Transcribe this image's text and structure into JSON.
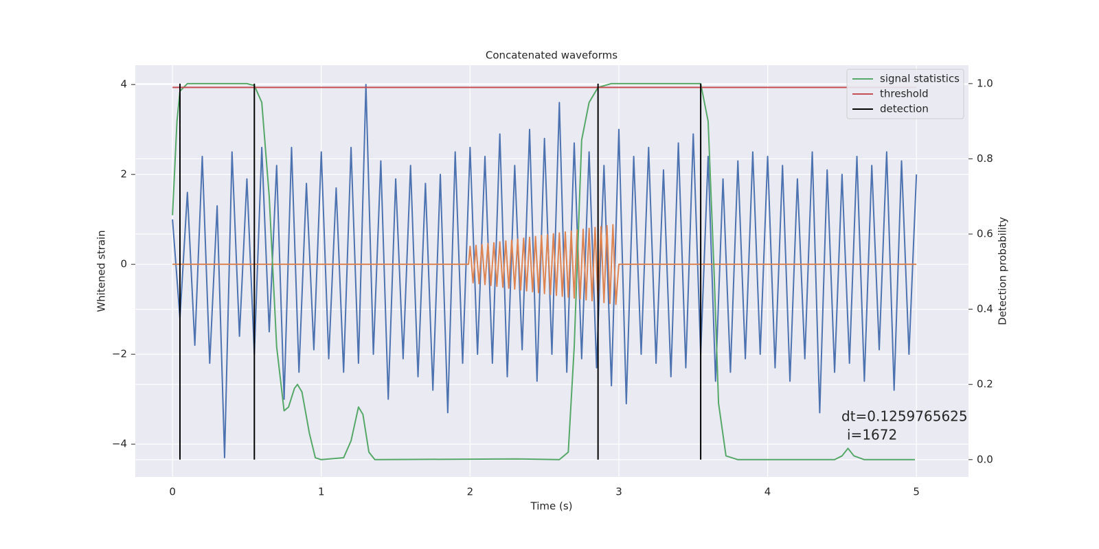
{
  "chart_data": {
    "type": "line",
    "title": "Concatenated waveforms",
    "xlabel": "Time (s)",
    "ylabel": "Whitened strain",
    "y2label": "Detection probability",
    "xlim": [
      -0.25,
      5.35
    ],
    "ylim": [
      -4.73,
      4.43
    ],
    "y2lim": [
      -0.046,
      1.049
    ],
    "xticks": [
      0,
      1,
      2,
      3,
      4,
      5
    ],
    "yticks": [
      {
        "value": -4,
        "label": "−4"
      },
      {
        "value": -2,
        "label": "−2"
      },
      0,
      2,
      4
    ],
    "y2ticks": [
      {
        "value": 0,
        "label": "0.0"
      },
      0.2,
      0.4,
      0.6,
      0.8,
      {
        "value": 1,
        "label": "1.0"
      }
    ],
    "grid": true,
    "legend": "upper right",
    "annotations": [
      "dt=0.1259765625",
      "i=1672"
    ],
    "series": [
      {
        "name": null,
        "color": "#4c72b0",
        "x": [
          0,
          0.05,
          0.1,
          0.15,
          0.2,
          0.25,
          0.3,
          0.35,
          0.4,
          0.45,
          0.5,
          0.55,
          0.6,
          0.65,
          0.7,
          0.75,
          0.8,
          0.85,
          0.9,
          0.95,
          1,
          1.05,
          1.1,
          1.15,
          1.2,
          1.25,
          1.3,
          1.35,
          1.4,
          1.45,
          1.5,
          1.55,
          1.6,
          1.65,
          1.7,
          1.75,
          1.8,
          1.85,
          1.9,
          1.95,
          2,
          2.05,
          2.1,
          2.15,
          2.2,
          2.25,
          2.3,
          2.35,
          2.4,
          2.45,
          2.5,
          2.55,
          2.6,
          2.65,
          2.7,
          2.75,
          2.8,
          2.85,
          2.9,
          2.95,
          3,
          3.05,
          3.1,
          3.15,
          3.2,
          3.25,
          3.3,
          3.35,
          3.4,
          3.45,
          3.5,
          3.55,
          3.6,
          3.65,
          3.7,
          3.75,
          3.8,
          3.85,
          3.9,
          3.95,
          4,
          4.05,
          4.1,
          4.15,
          4.2,
          4.25,
          4.3,
          4.35,
          4.4,
          4.45,
          4.5,
          4.55,
          4.6,
          4.65,
          4.7,
          4.75,
          4.8,
          4.85,
          4.9,
          4.95,
          5
        ],
        "values": [
          1.0,
          -1.2,
          1.6,
          -1.8,
          2.4,
          -2.2,
          1.3,
          -4.3,
          2.5,
          -1.6,
          1.9,
          -2.0,
          2.6,
          -1.5,
          2.2,
          -3.0,
          2.6,
          -2.4,
          1.8,
          -1.9,
          2.5,
          -2.1,
          1.7,
          -2.4,
          2.6,
          -2.2,
          4.0,
          -2.0,
          2.3,
          -3.0,
          1.9,
          -2.1,
          2.2,
          -2.5,
          1.8,
          -2.8,
          2.0,
          -3.3,
          2.5,
          -2.2,
          2.6,
          -2.0,
          2.4,
          -2.2,
          2.9,
          -2.5,
          2.2,
          -1.9,
          3.0,
          -2.6,
          2.8,
          -2.0,
          3.6,
          -2.4,
          2.7,
          -2.1,
          2.5,
          -2.3,
          2.2,
          -2.7,
          3.0,
          -3.1,
          2.4,
          -2.0,
          2.6,
          -2.2,
          2.1,
          -2.5,
          2.7,
          -2.3,
          2.9,
          -2.0,
          2.4,
          -2.6,
          1.9,
          -2.4,
          2.3,
          -2.1,
          2.5,
          -2.0,
          2.4,
          -2.3,
          2.2,
          -2.6,
          1.9,
          -2.1,
          2.5,
          -3.3,
          2.1,
          -2.4,
          2.0,
          -2.2,
          2.4,
          -2.6,
          2.2,
          -1.9,
          2.5,
          -2.8,
          2.3,
          -2.0,
          2.0
        ]
      },
      {
        "name": null,
        "color": "#dd8452",
        "x": [
          0,
          1.99,
          2,
          2.02,
          2.04,
          2.06,
          2.08,
          2.1,
          2.12,
          2.14,
          2.16,
          2.18,
          2.2,
          2.22,
          2.24,
          2.26,
          2.28,
          2.3,
          2.32,
          2.34,
          2.36,
          2.38,
          2.4,
          2.42,
          2.44,
          2.46,
          2.48,
          2.5,
          2.52,
          2.54,
          2.56,
          2.58,
          2.6,
          2.62,
          2.64,
          2.66,
          2.68,
          2.7,
          2.72,
          2.74,
          2.76,
          2.78,
          2.8,
          2.82,
          2.84,
          2.86,
          2.88,
          2.9,
          2.92,
          2.94,
          2.96,
          2.98,
          3,
          5
        ],
        "values": [
          0,
          0,
          0.4,
          -0.41,
          0.42,
          -0.43,
          0.44,
          -0.45,
          0.46,
          -0.47,
          0.48,
          -0.49,
          0.5,
          -0.51,
          0.52,
          -0.53,
          0.54,
          -0.55,
          0.56,
          -0.57,
          0.58,
          -0.59,
          0.6,
          -0.61,
          0.62,
          -0.63,
          0.64,
          -0.65,
          0.66,
          -0.67,
          0.68,
          -0.69,
          0.7,
          -0.71,
          0.72,
          -0.73,
          0.74,
          -0.75,
          0.76,
          -0.77,
          0.78,
          -0.79,
          0.8,
          -0.81,
          0.82,
          -0.83,
          0.84,
          -0.85,
          0.86,
          -0.87,
          0.88,
          -0.89,
          0,
          0
        ]
      },
      {
        "name": "signal statistics",
        "color": "#55a868",
        "axis": "y2",
        "x": [
          0,
          0.03,
          0.05,
          0.1,
          0.5,
          0.55,
          0.6,
          0.65,
          0.7,
          0.75,
          0.78,
          0.82,
          0.84,
          0.87,
          0.92,
          0.96,
          1,
          1.15,
          1.2,
          1.25,
          1.28,
          1.32,
          1.36,
          2.3,
          2.6,
          2.66,
          2.7,
          2.75,
          2.8,
          2.86,
          2.95,
          3.55,
          3.6,
          3.64,
          3.67,
          3.72,
          3.8,
          4.45,
          4.5,
          4.54,
          4.58,
          4.65,
          4.99
        ],
        "values": [
          0.65,
          0.9,
          0.98,
          1.0,
          1.0,
          0.995,
          0.95,
          0.7,
          0.3,
          0.13,
          0.14,
          0.19,
          0.2,
          0.18,
          0.07,
          0.005,
          0.0,
          0.005,
          0.05,
          0.14,
          0.12,
          0.02,
          0.0,
          0.002,
          0.0,
          0.02,
          0.3,
          0.85,
          0.95,
          0.99,
          1.0,
          1.0,
          0.9,
          0.5,
          0.15,
          0.01,
          0.0,
          0.0,
          0.01,
          0.03,
          0.01,
          0.0,
          0.0
        ]
      },
      {
        "name": "threshold",
        "color": "#c44e52",
        "axis": "y2",
        "x": [
          0,
          5
        ],
        "values": [
          0.99,
          0.99
        ]
      },
      {
        "name": "detection",
        "color": "#000000",
        "axis": "y2",
        "style": "vline",
        "x": [
          0.05,
          0.55,
          2.86,
          3.55
        ],
        "span": [
          0,
          1
        ]
      }
    ]
  }
}
